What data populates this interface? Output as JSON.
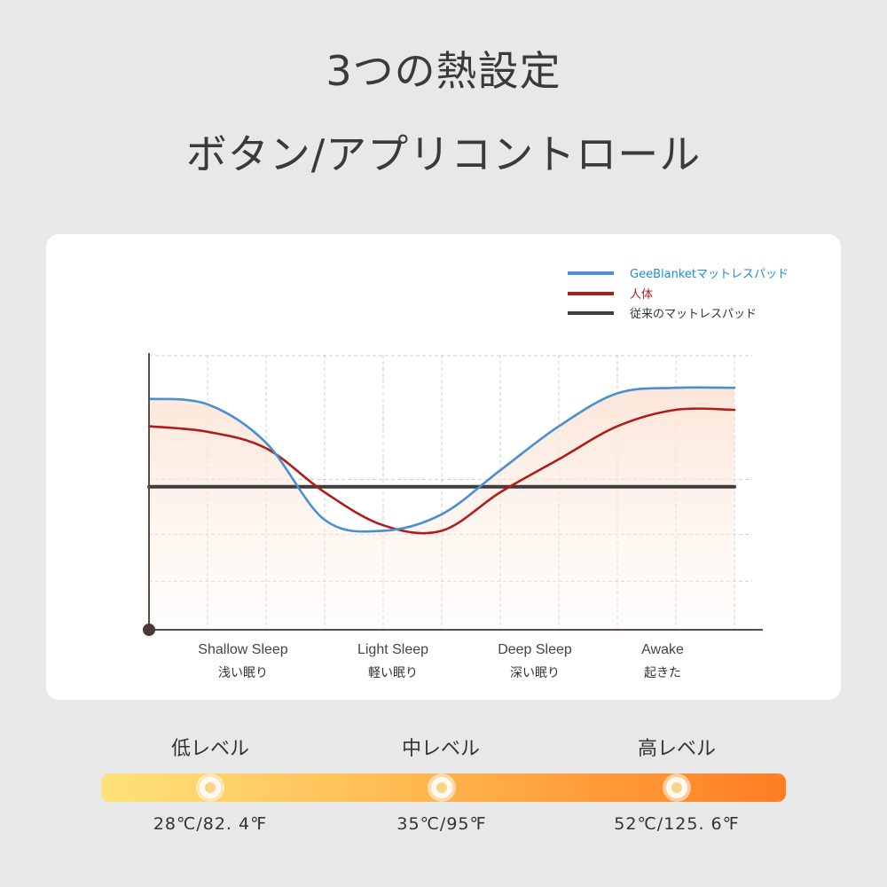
{
  "header": {
    "line1": "3つの熱設定",
    "line2": "ボタン/アプリコントロール"
  },
  "chart_data": {
    "type": "line",
    "title": "",
    "categories": [
      "Shallow Sleep",
      "Light Sleep",
      "Deep Sleep",
      "Awake"
    ],
    "category_subtitles": [
      "浅い眠り",
      "軽い眠り",
      "深い眠り",
      "起きた"
    ],
    "x": [
      0,
      1,
      2,
      3,
      4,
      5,
      6,
      7,
      8,
      9,
      10
    ],
    "ylim": [
      0,
      100
    ],
    "grid": true,
    "legend_position": "top-right",
    "series": [
      {
        "name": "GeeBlanketマットレスパッド",
        "color": "#4a90d0",
        "values": [
          84,
          82,
          68,
          40,
          36,
          42,
          58,
          74,
          86,
          88,
          88
        ]
      },
      {
        "name": "人体",
        "color": "#b01c1c",
        "values": [
          74,
          72,
          66,
          50,
          38,
          36,
          50,
          62,
          74,
          80,
          80
        ]
      },
      {
        "name": "従来のマットレスパッド",
        "color": "#3e3e3e",
        "values": [
          52,
          52,
          52,
          52,
          52,
          52,
          52,
          52,
          52,
          52,
          52
        ]
      }
    ]
  },
  "levels": [
    {
      "label": "低レベル",
      "temp": "28℃/82. 4℉"
    },
    {
      "label": "中レベル",
      "temp": "35℃/95℉"
    },
    {
      "label": "高レベル",
      "temp": "52℃/125. 6℉"
    }
  ],
  "colors": {
    "blue_line": "#4a90d0",
    "red_line": "#b01c1c",
    "dark_line": "#3e3e3e",
    "bar_start": "#ffe27a",
    "bar_end": "#ff7e22"
  }
}
